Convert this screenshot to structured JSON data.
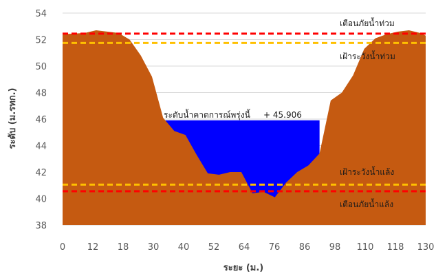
{
  "chart_data": {
    "type": "area",
    "xlabel": "ระยะ (ม.)",
    "ylabel": "ระดับ (ม.รทก.)",
    "xlim": [
      0,
      130
    ],
    "ylim": [
      38,
      54
    ],
    "x_ticks": [
      0,
      12,
      18,
      30,
      40,
      52,
      64,
      76,
      86,
      98,
      110,
      118,
      130
    ],
    "y_ticks": [
      38,
      40,
      42,
      44,
      46,
      48,
      50,
      52,
      54
    ],
    "grid": "horizontal",
    "colors": {
      "ground": "#C55A11",
      "water": "#0000FF",
      "flood_warning": "#FF0000",
      "flood_watch": "#FFC000",
      "grid": "#D9D9D9"
    },
    "ground_profile": {
      "x": [
        0,
        8,
        12,
        20,
        24,
        28,
        32,
        36,
        40,
        44,
        48,
        52,
        56,
        60,
        64,
        68,
        72,
        76,
        80,
        84,
        88,
        92,
        96,
        100,
        104,
        108,
        112,
        116,
        120,
        124,
        128,
        130
      ],
      "y": [
        52.4,
        52.5,
        52.7,
        52.5,
        52.0,
        50.8,
        49.2,
        46.1,
        45.1,
        44.8,
        43.3,
        41.9,
        41.8,
        42.0,
        42.0,
        40.4,
        40.5,
        40.1,
        41.2,
        42.0,
        42.5,
        43.4,
        47.4,
        48.0,
        49.3,
        51.3,
        52.1,
        52.4,
        52.6,
        52.7,
        52.5,
        52.3
      ]
    },
    "water_level": {
      "label": "ระดับน้ำคาดการณ์พรุ่งนี้",
      "value": 45.906,
      "value_text": "+ 45.906",
      "x_range": [
        35,
        92
      ]
    },
    "reference_lines": [
      {
        "name": "เตือนภัยน้ำท่วม",
        "value": 52.45,
        "color": "#FF0000"
      },
      {
        "name": "เฝ้าระวังน้ำท่วม",
        "value": 51.75,
        "color": "#FFC000"
      },
      {
        "name": "เฝ้าระวังน้ำแล้ง",
        "value": 41.05,
        "color": "#FFC000"
      },
      {
        "name": "เตือนภัยน้ำแล้ง",
        "value": 40.55,
        "color": "#FF0000"
      }
    ]
  }
}
